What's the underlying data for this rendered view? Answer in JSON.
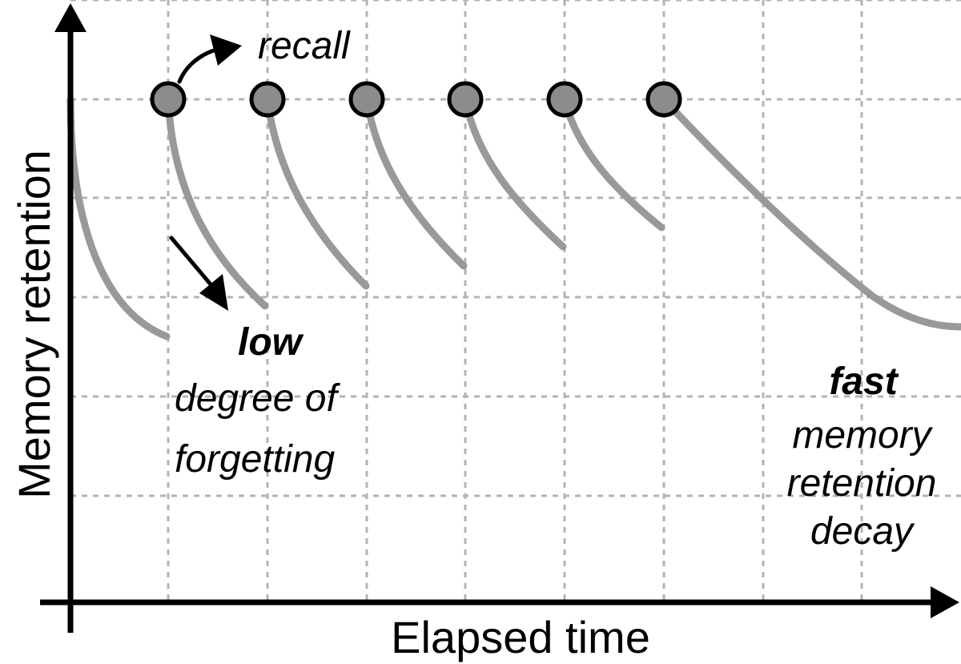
{
  "axes": {
    "x_label": "Elapsed time",
    "y_label": "Memory retention"
  },
  "annotations": {
    "recall": "recall",
    "low": {
      "emphasis": "low",
      "line1": "degree of",
      "line2": "forgetting"
    },
    "fast": {
      "emphasis": "fast",
      "line1": "memory",
      "line2": "retention",
      "line3": "decay"
    }
  },
  "colors": {
    "curve": "#999999",
    "recall_point": "#8c8c8c",
    "grid": "#b3b3b3",
    "axis": "#000000"
  }
}
